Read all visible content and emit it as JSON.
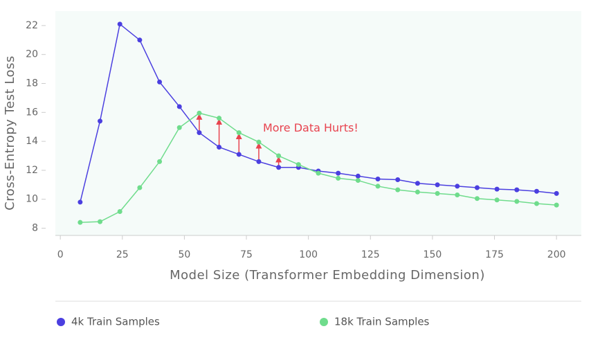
{
  "chart_data": {
    "type": "line",
    "x_label": "Model Size (Transformer Embedding Dimension)",
    "y_label": "Cross-Entropy Test Loss",
    "annotation": "More Data Hurts!",
    "x": [
      8,
      16,
      24,
      32,
      40,
      48,
      56,
      64,
      72,
      80,
      88,
      96,
      104,
      112,
      120,
      128,
      136,
      144,
      152,
      160,
      168,
      176,
      184,
      192,
      200
    ],
    "series": [
      {
        "name": "4k Train Samples",
        "color": "#4b3fe0",
        "values": [
          9.8,
          15.4,
          22.1,
          21.0,
          18.1,
          16.4,
          14.6,
          13.6,
          13.1,
          12.6,
          12.2,
          12.2,
          11.95,
          11.8,
          11.6,
          11.4,
          11.35,
          11.1,
          11.0,
          10.9,
          10.8,
          10.7,
          10.65,
          10.55,
          10.4
        ]
      },
      {
        "name": "18k Train Samples",
        "color": "#6fdc8c",
        "values": [
          8.4,
          8.45,
          9.15,
          10.8,
          12.6,
          14.95,
          15.95,
          15.6,
          14.6,
          13.95,
          13.0,
          12.4,
          11.8,
          11.45,
          11.3,
          10.9,
          10.65,
          10.5,
          10.4,
          10.3,
          10.05,
          9.95,
          9.85,
          9.7,
          9.6
        ]
      }
    ],
    "xlim": [
      -2,
      210
    ],
    "ylim": [
      7.5,
      23
    ],
    "xticks": [
      0,
      25,
      50,
      75,
      100,
      125,
      150,
      175,
      200
    ],
    "yticks": [
      8,
      10,
      12,
      14,
      16,
      18,
      20,
      22
    ],
    "annotation_arrow_color": "#e8434f"
  }
}
